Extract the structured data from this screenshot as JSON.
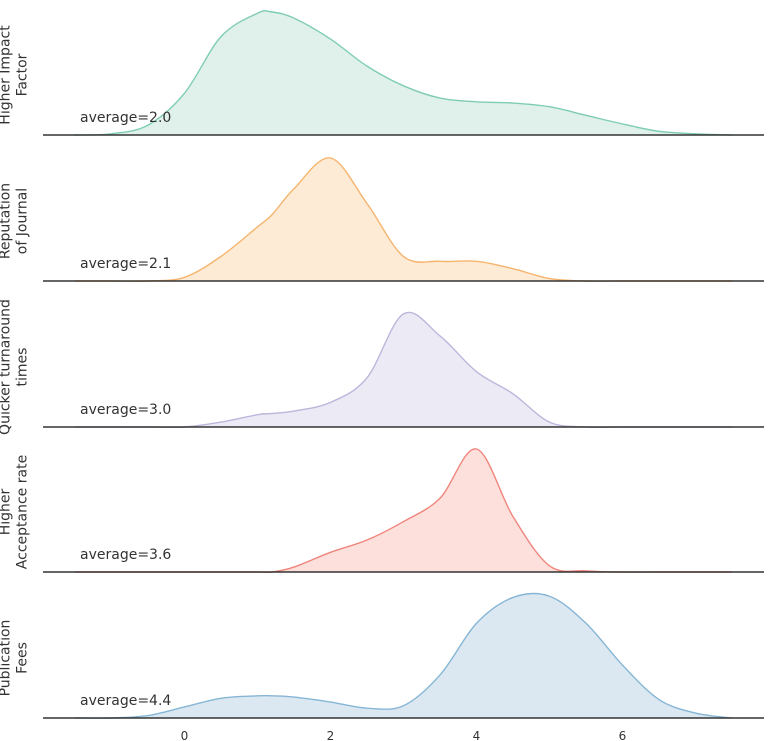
{
  "chart_data": {
    "type": "area",
    "subtype": "ridgeline-kde",
    "grid": false,
    "xlim": [
      -1.6,
      7.8
    ],
    "xticks": [
      "0",
      "2",
      "4",
      "6"
    ],
    "x": [
      -1.5,
      -1,
      -0.5,
      0,
      0.5,
      1,
      1.2,
      1.5,
      2,
      2.5,
      3,
      3.5,
      4,
      4.5,
      5,
      5.5,
      6,
      6.5,
      7,
      7.5
    ],
    "series": [
      {
        "name": "Higher Impact Factor",
        "label_lines": [
          "Higher Impact",
          "Factor"
        ],
        "annotation": "average=2.0",
        "color": "#7fcdb1",
        "fill": "#dff1ea",
        "density": [
          0,
          0.01,
          0.08,
          0.34,
          0.8,
          0.99,
          1.0,
          0.95,
          0.78,
          0.56,
          0.4,
          0.3,
          0.27,
          0.26,
          0.23,
          0.16,
          0.09,
          0.03,
          0.01,
          0
        ]
      },
      {
        "name": "Reputation of Journal",
        "label_lines": [
          "Reputation",
          "of Journal"
        ],
        "annotation": "average=2.1",
        "color": "#f6b46c",
        "fill": "#feebd6",
        "density": [
          0,
          0,
          0,
          0.03,
          0.2,
          0.44,
          0.54,
          0.75,
          1.0,
          0.63,
          0.2,
          0.16,
          0.16,
          0.1,
          0.02,
          0,
          0,
          0,
          0,
          0
        ]
      },
      {
        "name": "Quicker turnaround times",
        "label_lines": [
          "Quicker turnaround",
          "times"
        ],
        "annotation": "average=3.0",
        "color": "#bcb6dc",
        "fill": "#ecebf5",
        "density": [
          0,
          0,
          0,
          0,
          0.04,
          0.1,
          0.11,
          0.13,
          0.2,
          0.4,
          0.92,
          0.74,
          0.45,
          0.27,
          0.04,
          0,
          0,
          0,
          0,
          0
        ]
      },
      {
        "name": "Higher Acceptance rate",
        "label_lines": [
          "Higher",
          "Acceptance rate"
        ],
        "annotation": "average=3.6",
        "color": "#ef857c",
        "fill": "#fde0dc",
        "density": [
          0,
          0,
          0,
          0,
          0,
          0,
          0,
          0.04,
          0.16,
          0.26,
          0.41,
          0.6,
          1.0,
          0.45,
          0.05,
          0.01,
          0,
          0,
          0,
          0
        ]
      },
      {
        "name": "Publication Fees",
        "label_lines": [
          "Publication",
          "Fees"
        ],
        "annotation": "average=4.4",
        "color": "#86b6d6",
        "fill": "#dce8f1",
        "density": [
          0,
          0,
          0.02,
          0.09,
          0.16,
          0.18,
          0.18,
          0.17,
          0.13,
          0.08,
          0.1,
          0.35,
          0.77,
          0.98,
          0.99,
          0.77,
          0.43,
          0.15,
          0.04,
          0
        ]
      }
    ]
  }
}
